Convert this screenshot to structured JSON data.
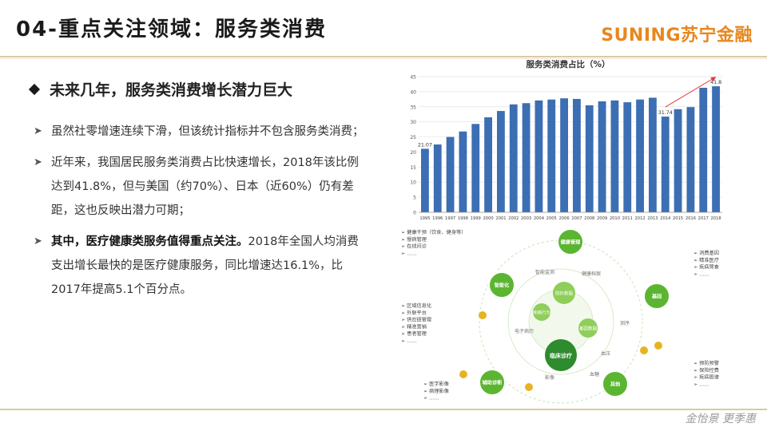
{
  "header": {
    "title": "04-重点关注领域：服务类消费",
    "logo": "SUNING苏宁金融"
  },
  "section": {
    "heading": "未来几年，服务类消费增长潜力巨大"
  },
  "bullets": [
    {
      "text": "虽然社零增速连续下滑，但该统计指标并不包含服务类消费；"
    },
    {
      "text": "近年来，我国居民服务类消费占比快速增长，2018年该比例达到41.8%，但与美国（约70%）、日本（近60%）仍有差距，这也反映出潜力可期；"
    },
    {
      "bold": "其中，医疗健康类服务值得重点关注。",
      "text": "2018年全国人均消费支出增长最快的是医疗健康服务，同比增速达16.1%，比2017年提高5.1个百分点。"
    }
  ],
  "chart_data": {
    "type": "bar",
    "title": "服务类消费占比（%）",
    "categories": [
      "1995",
      "1996",
      "1997",
      "1998",
      "1999",
      "2000",
      "2001",
      "2002",
      "2003",
      "2004",
      "2005",
      "2006",
      "2007",
      "2008",
      "2009",
      "2010",
      "2011",
      "2012",
      "2013",
      "2014",
      "2015",
      "2016",
      "2017",
      "2018"
    ],
    "values": [
      21.07,
      22.5,
      25.0,
      26.8,
      29.3,
      31.5,
      33.6,
      35.8,
      36.2,
      37.1,
      37.4,
      37.8,
      37.6,
      35.5,
      36.8,
      37.1,
      36.5,
      37.4,
      38.0,
      31.74,
      34.2,
      34.9,
      41.3,
      41.8
    ],
    "data_labels": {
      "1995": "21.07",
      "2014": "31.74",
      "2018": "41.8"
    },
    "ylim": [
      0,
      45
    ],
    "yticks": [
      0,
      5,
      10,
      15,
      20,
      25,
      30,
      35,
      40,
      45
    ],
    "grid": true,
    "bar_color": "#3c6eb4",
    "trend_arrow_color": "#e53935"
  },
  "diagram": {
    "center": "临床诊疗",
    "inner_nodes": [
      "院外数据",
      "疾病行为",
      "基因数据"
    ],
    "ring_labels": [
      "智能监测",
      "健康档案",
      "电子病历",
      "测序",
      "影像",
      "血糖",
      "血压"
    ],
    "outer_nodes": [
      "健康管理",
      "智能化",
      "基因",
      "辅助诊断",
      "其他"
    ],
    "lists": {
      "top_left": [
        "健康干预（饮食、健身等）",
        "慢病管理",
        "在线问诊",
        "……"
      ],
      "top_right": [
        "消费基因",
        "精准医疗",
        "疾病筛查",
        "……"
      ],
      "mid_left": [
        "区域信息化",
        "外联平台",
        "供应链管理",
        "精准营销",
        "患者管理",
        "……"
      ],
      "bottom_right": [
        "预防预警",
        "保险控费",
        "疾病图谱",
        "……"
      ],
      "bottom_left": [
        "医学影像",
        "病理影像",
        "……"
      ]
    },
    "colors": {
      "green": "#5cb531",
      "dark_green": "#2e8b2e",
      "light_green": "#8fce5a",
      "yellow": "#e6b422"
    }
  },
  "footer": {
    "signature": "金怡景 更季惠"
  }
}
